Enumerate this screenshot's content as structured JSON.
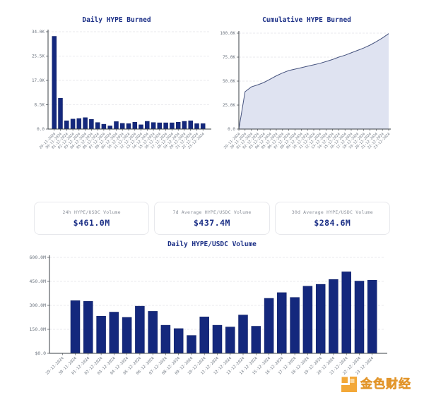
{
  "page": {
    "background": "#ffffff"
  },
  "colors": {
    "bar": "#14287d",
    "bar_edge": "#0e1e63",
    "title": "#1b2f86",
    "axis": "#3a3f45",
    "grid": "#e3e4e9",
    "tick_label": "#6e7680",
    "area_fill": "#dfe3f1",
    "area_line": "#46537e",
    "card_border": "#e7e8ec",
    "card_label": "#8b909a",
    "card_value": "#1b2f86",
    "watermark": "#f3a838"
  },
  "stat_cards": [
    {
      "label": "24h HYPE/USDC Volume",
      "value": "$461.0M"
    },
    {
      "label": "7d Average HYPE/USDC Volume",
      "value": "$437.4M"
    },
    {
      "label": "30d Average HYPE/USDC Volume",
      "value": "$284.6M"
    }
  ],
  "watermark": {
    "text": "金色财经",
    "logo": "jinse-finance-logo"
  },
  "chart_data": [
    {
      "id": "daily-hype-burned",
      "type": "bar",
      "title": "Daily HYPE Burned",
      "xlabel": "",
      "ylabel": "",
      "grid": "dashed-horizontal",
      "legend": "none",
      "ylim": [
        0,
        34
      ],
      "y_ticks": [
        {
          "label": "34.0K",
          "value": 34
        },
        {
          "label": "25.5K",
          "value": 25.5
        },
        {
          "label": "17.0K",
          "value": 17
        },
        {
          "label": "8.5K",
          "value": 8.5
        },
        {
          "label": "0.0",
          "value": 0
        }
      ],
      "categories": [
        "29-11-2024",
        "30-11-2024",
        "01-12-2024",
        "02-12-2024",
        "03-12-2024",
        "04-12-2024",
        "05-12-2024",
        "06-12-2024",
        "07-12-2024",
        "08-12-2024",
        "09-12-2024",
        "10-12-2024",
        "11-12-2024",
        "12-12-2024",
        "13-12-2024",
        "14-12-2024",
        "15-12-2024",
        "16-12-2024",
        "17-12-2024",
        "18-12-2024",
        "19-12-2024",
        "20-12-2024",
        "21-12-2024",
        "22-12-2024",
        "23-12-2024"
      ],
      "values": [
        32.4,
        10.8,
        2.9,
        3.5,
        3.7,
        4.0,
        3.4,
        2.3,
        1.7,
        1.1,
        2.6,
        2.0,
        1.9,
        2.4,
        1.5,
        2.7,
        2.3,
        2.2,
        2.2,
        2.2,
        2.4,
        2.7,
        2.9,
        1.9,
        1.9
      ],
      "value_unit": "K HYPE"
    },
    {
      "id": "cumulative-hype-burned",
      "type": "area",
      "title": "Cumulative HYPE Burned",
      "xlabel": "",
      "ylabel": "",
      "grid": "dashed-horizontal",
      "legend": "none",
      "ylim": [
        0,
        100
      ],
      "y_ticks": [
        {
          "label": "100.0K",
          "value": 100
        },
        {
          "label": "75.0K",
          "value": 75
        },
        {
          "label": "50.0K",
          "value": 50
        },
        {
          "label": "25.0K",
          "value": 25
        },
        {
          "label": "0.0",
          "value": 0
        }
      ],
      "categories": [
        "29-11-2024",
        "30-11-2024",
        "01-12-2024",
        "02-12-2024",
        "03-12-2024",
        "04-12-2024",
        "05-12-2024",
        "06-12-2024",
        "07-12-2024",
        "08-12-2024",
        "09-12-2024",
        "10-12-2024",
        "11-12-2024",
        "12-12-2024",
        "13-12-2024",
        "14-12-2024",
        "15-12-2024",
        "16-12-2024",
        "17-12-2024",
        "18-12-2024",
        "19-12-2024",
        "20-12-2024",
        "21-12-2024",
        "22-12-2024",
        "23-12-2024"
      ],
      "values": [
        0,
        39,
        44,
        46,
        48.5,
        52,
        55.5,
        58.5,
        61,
        62.5,
        64,
        65.5,
        67,
        68.5,
        70.5,
        72.5,
        75,
        77,
        79.5,
        82,
        84.5,
        87.5,
        91,
        95,
        99.5
      ],
      "value_unit": "K HYPE"
    },
    {
      "id": "daily-hype-usdc-volume",
      "type": "bar",
      "title": "Daily HYPE/USDC Volume",
      "xlabel": "",
      "ylabel": "",
      "grid": "dashed-horizontal",
      "legend": "none",
      "ylim": [
        0,
        600
      ],
      "y_ticks": [
        {
          "label": "600.0M",
          "value": 600
        },
        {
          "label": "450.0M",
          "value": 450
        },
        {
          "label": "300.0M",
          "value": 300
        },
        {
          "label": "150.0M",
          "value": 150
        },
        {
          "label": "$0.0",
          "value": 0
        }
      ],
      "categories": [
        "29-11-2024",
        "30-11-2024",
        "01-12-2024",
        "02-12-2024",
        "03-12-2024",
        "04-12-2024",
        "05-12-2024",
        "06-12-2024",
        "07-12-2024",
        "08-12-2024",
        "09-12-2024",
        "10-12-2024",
        "11-12-2024",
        "12-12-2024",
        "13-12-2024",
        "14-12-2024",
        "15-12-2024",
        "16-12-2024",
        "17-12-2024",
        "18-12-2024",
        "19-12-2024",
        "20-12-2024",
        "21-12-2024",
        "22-12-2024",
        "23-12-2024"
      ],
      "values": [
        0,
        330,
        325,
        233,
        258,
        225,
        295,
        263,
        176,
        155,
        112,
        228,
        176,
        165,
        240,
        170,
        344,
        380,
        350,
        420,
        432,
        462,
        510,
        452,
        458
      ],
      "value_unit": "M USD"
    }
  ]
}
